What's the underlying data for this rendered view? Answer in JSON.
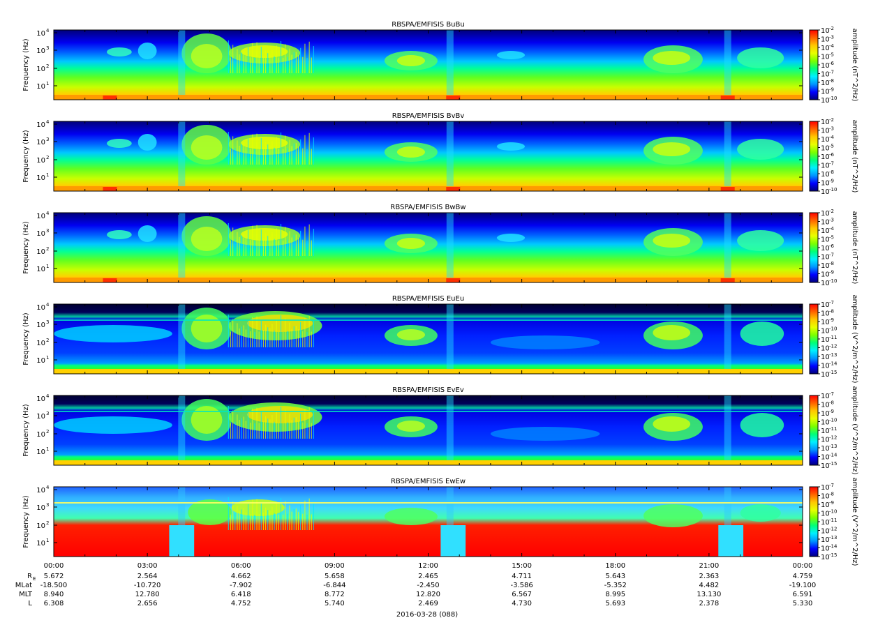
{
  "chart_data": {
    "type": "heatmap",
    "date_label": "2016-03-28 (088)",
    "ylabel": "Frequency (Hz)",
    "y_scale": "log",
    "y_ticks": [
      "10",
      "10",
      "10",
      "10"
    ],
    "y_tick_exponents": [
      "1",
      "2",
      "3",
      "4"
    ],
    "x_ticks": [
      "00:00",
      "03:00",
      "06:00",
      "09:00",
      "12:00",
      "15:00",
      "18:00",
      "21:00",
      "00:00"
    ],
    "ephemeris": [
      {
        "label": "R",
        "label_sub": "E",
        "values": [
          "5.672",
          "2.564",
          "4.662",
          "5.658",
          "2.465",
          "4.711",
          "5.643",
          "2.363",
          "4.759"
        ]
      },
      {
        "label": "MLat",
        "label_sub": "",
        "values": [
          "-18.500",
          "-10.720",
          "-7.902",
          "-6.844",
          "-2.450",
          "-3.586",
          "-5.352",
          "4.482",
          "-19.100"
        ]
      },
      {
        "label": "MLT",
        "label_sub": "",
        "values": [
          "8.940",
          "12.780",
          "6.418",
          "8.772",
          "12.820",
          "6.567",
          "8.995",
          "13.130",
          "6.591"
        ]
      },
      {
        "label": "L",
        "label_sub": "",
        "values": [
          "6.308",
          "2.656",
          "4.752",
          "5.740",
          "2.469",
          "4.730",
          "5.693",
          "2.378",
          "5.330"
        ]
      }
    ],
    "colormap": [
      "#00007a",
      "#0000ff",
      "#0096ff",
      "#00f0ff",
      "#00ff78",
      "#7aff00",
      "#e8ff00",
      "#ffc800",
      "#ff6400",
      "#ff0000"
    ],
    "panels": [
      {
        "title": "RBSPA/EMFISIS  BuBu",
        "cbar_label": "amplitude (nT^2/Hz)",
        "cbar_ticks": [
          "-2",
          "-3",
          "-4",
          "-5",
          "-6",
          "-7",
          "-8",
          "-9",
          "-10"
        ],
        "kind": "B"
      },
      {
        "title": "RBSPA/EMFISIS  BvBv",
        "cbar_label": "amplitude (nT^2/Hz)",
        "cbar_ticks": [
          "-2",
          "-3",
          "-4",
          "-5",
          "-6",
          "-7",
          "-8",
          "-9",
          "-10"
        ],
        "kind": "B"
      },
      {
        "title": "RBSPA/EMFISIS  BwBw",
        "cbar_label": "amplitude (nT^2/Hz)",
        "cbar_ticks": [
          "-2",
          "-3",
          "-4",
          "-5",
          "-6",
          "-7",
          "-8",
          "-9",
          "-10"
        ],
        "kind": "B"
      },
      {
        "title": "RBSPA/EMFISIS  EuEu",
        "cbar_label": "amplitude (V^2/m^2/Hz)",
        "cbar_ticks": [
          "-7",
          "-8",
          "-9",
          "-10",
          "-11",
          "-12",
          "-13",
          "-14",
          "-15"
        ],
        "kind": "E"
      },
      {
        "title": "RBSPA/EMFISIS  EvEv",
        "cbar_label": "amplitude (V^2/m^2/Hz)",
        "cbar_ticks": [
          "-7",
          "-8",
          "-9",
          "-10",
          "-11",
          "-12",
          "-13",
          "-14",
          "-15"
        ],
        "kind": "E"
      },
      {
        "title": "RBSPA/EMFISIS  EwEw",
        "cbar_label": "amplitude (V^2/m^2/Hz)",
        "cbar_ticks": [
          "-7",
          "-8",
          "-9",
          "-10",
          "-11",
          "-12",
          "-13",
          "-14",
          "-15"
        ],
        "kind": "Ew"
      }
    ]
  }
}
